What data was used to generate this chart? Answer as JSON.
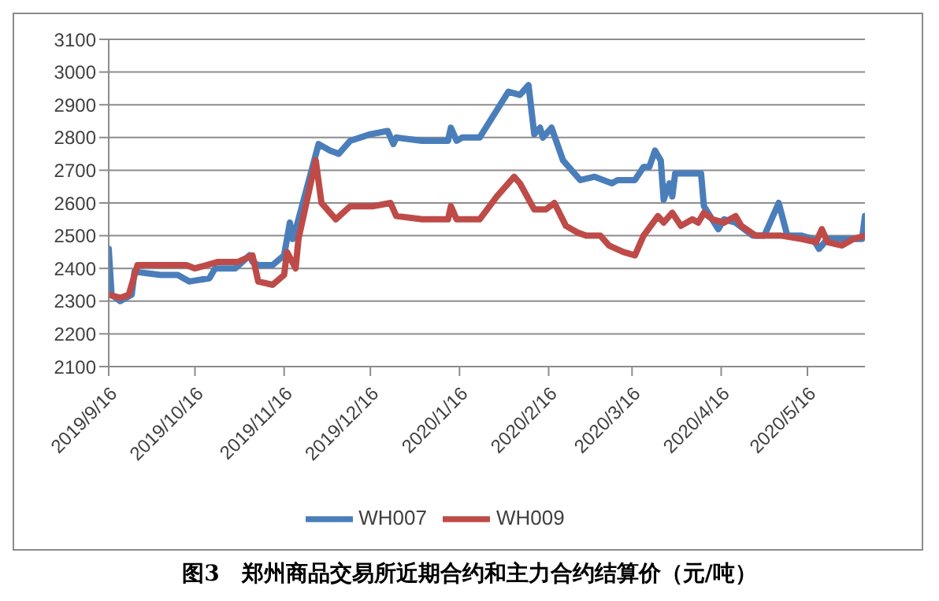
{
  "chart_data": {
    "type": "line",
    "title": "图3　郑州商品交易所近期合约和主力合约结算价（元/吨）",
    "xlim": [
      "2019-09-16",
      "2020-06-05"
    ],
    "xticks": [
      {
        "value": "2019-09-16",
        "label": "2019/9/16"
      },
      {
        "value": "2019-10-16",
        "label": "2019/10/16"
      },
      {
        "value": "2019-11-16",
        "label": "2019/11/16"
      },
      {
        "value": "2019-12-16",
        "label": "2019/12/16"
      },
      {
        "value": "2020-01-16",
        "label": "2020/1/16"
      },
      {
        "value": "2020-02-16",
        "label": "2020/2/16"
      },
      {
        "value": "2020-03-16",
        "label": "2020/3/16"
      },
      {
        "value": "2020-04-16",
        "label": "2020/4/16"
      },
      {
        "value": "2020-05-16",
        "label": "2020/5/16"
      }
    ],
    "ylim": [
      2100,
      3100
    ],
    "yticks": [
      2100,
      2200,
      2300,
      2400,
      2500,
      2600,
      2700,
      2800,
      2900,
      3000,
      3100
    ],
    "grid": "y",
    "legend": "bottom",
    "line_style": "solid",
    "series": [
      {
        "name": "WH007",
        "color": "#4a7ebb",
        "x": [
          "2019-09-16",
          "2019-09-17",
          "2019-09-20",
          "2019-09-24",
          "2019-09-25",
          "2019-10-04",
          "2019-10-10",
          "2019-10-14",
          "2019-10-21",
          "2019-10-23",
          "2019-10-30",
          "2019-11-04",
          "2019-11-05",
          "2019-11-07",
          "2019-11-12",
          "2019-11-16",
          "2019-11-18",
          "2019-11-19",
          "2019-11-21",
          "2019-11-28",
          "2019-12-02",
          "2019-12-05",
          "2019-12-09",
          "2019-12-16",
          "2019-12-22",
          "2019-12-24",
          "2019-12-25",
          "2020-01-03",
          "2020-01-12",
          "2020-01-13",
          "2020-01-15",
          "2020-01-17",
          "2020-01-23",
          "2020-02-02",
          "2020-02-06",
          "2020-02-09",
          "2020-02-11",
          "2020-02-13",
          "2020-02-14",
          "2020-02-17",
          "2020-02-21",
          "2020-02-25",
          "2020-02-27",
          "2020-03-03",
          "2020-03-09",
          "2020-03-11",
          "2020-03-17",
          "2020-03-20",
          "2020-03-22",
          "2020-03-24",
          "2020-03-26",
          "2020-03-27",
          "2020-03-29",
          "2020-03-30",
          "2020-03-31",
          "2020-04-09",
          "2020-04-10",
          "2020-04-15",
          "2020-04-17",
          "2020-04-21",
          "2020-04-27",
          "2020-05-01",
          "2020-05-06",
          "2020-05-09",
          "2020-05-14",
          "2020-05-18",
          "2020-05-20",
          "2020-05-23",
          "2020-06-04",
          "2020-06-05"
        ],
        "values": [
          2460,
          2320,
          2300,
          2320,
          2390,
          2380,
          2380,
          2360,
          2370,
          2400,
          2400,
          2440,
          2420,
          2410,
          2410,
          2440,
          2540,
          2490,
          2550,
          2780,
          2760,
          2750,
          2790,
          2810,
          2820,
          2780,
          2800,
          2790,
          2790,
          2830,
          2790,
          2800,
          2800,
          2940,
          2930,
          2960,
          2810,
          2830,
          2800,
          2830,
          2730,
          2690,
          2670,
          2680,
          2660,
          2670,
          2670,
          2710,
          2710,
          2760,
          2730,
          2610,
          2660,
          2620,
          2690,
          2690,
          2590,
          2520,
          2550,
          2540,
          2500,
          2500,
          2600,
          2500,
          2500,
          2490,
          2460,
          2490,
          2490,
          2560
        ]
      },
      {
        "name": "WH009",
        "color": "#be4b48",
        "x": [
          "2019-09-16",
          "2019-09-20",
          "2019-09-23",
          "2019-09-26",
          "2019-10-13",
          "2019-10-16",
          "2019-10-24",
          "2019-10-31",
          "2019-11-05",
          "2019-11-07",
          "2019-11-12",
          "2019-11-16",
          "2019-11-17",
          "2019-11-20",
          "2019-11-21",
          "2019-11-27",
          "2019-11-29",
          "2019-12-04",
          "2019-12-09",
          "2019-12-17",
          "2019-12-23",
          "2019-12-25",
          "2020-01-03",
          "2020-01-12",
          "2020-01-13",
          "2020-01-15",
          "2020-01-23",
          "2020-01-29",
          "2020-02-04",
          "2020-02-06",
          "2020-02-11",
          "2020-02-15",
          "2020-02-18",
          "2020-02-22",
          "2020-02-26",
          "2020-02-29",
          "2020-03-05",
          "2020-03-08",
          "2020-03-13",
          "2020-03-17",
          "2020-03-20",
          "2020-03-25",
          "2020-03-27",
          "2020-03-30",
          "2020-04-02",
          "2020-04-06",
          "2020-04-08",
          "2020-04-10",
          "2020-04-13",
          "2020-04-17",
          "2020-04-21",
          "2020-04-23",
          "2020-04-28",
          "2020-05-07",
          "2020-05-14",
          "2020-05-19",
          "2020-05-21",
          "2020-05-23",
          "2020-05-28",
          "2020-06-01",
          "2020-06-05"
        ],
        "values": [
          2320,
          2310,
          2320,
          2410,
          2410,
          2400,
          2420,
          2420,
          2440,
          2360,
          2350,
          2380,
          2450,
          2400,
          2490,
          2730,
          2600,
          2550,
          2590,
          2590,
          2600,
          2560,
          2550,
          2550,
          2590,
          2550,
          2550,
          2620,
          2680,
          2660,
          2580,
          2580,
          2600,
          2530,
          2510,
          2500,
          2500,
          2470,
          2450,
          2440,
          2500,
          2560,
          2540,
          2570,
          2530,
          2550,
          2540,
          2570,
          2550,
          2540,
          2560,
          2530,
          2500,
          2500,
          2490,
          2480,
          2520,
          2480,
          2470,
          2490,
          2500
        ]
      }
    ]
  }
}
